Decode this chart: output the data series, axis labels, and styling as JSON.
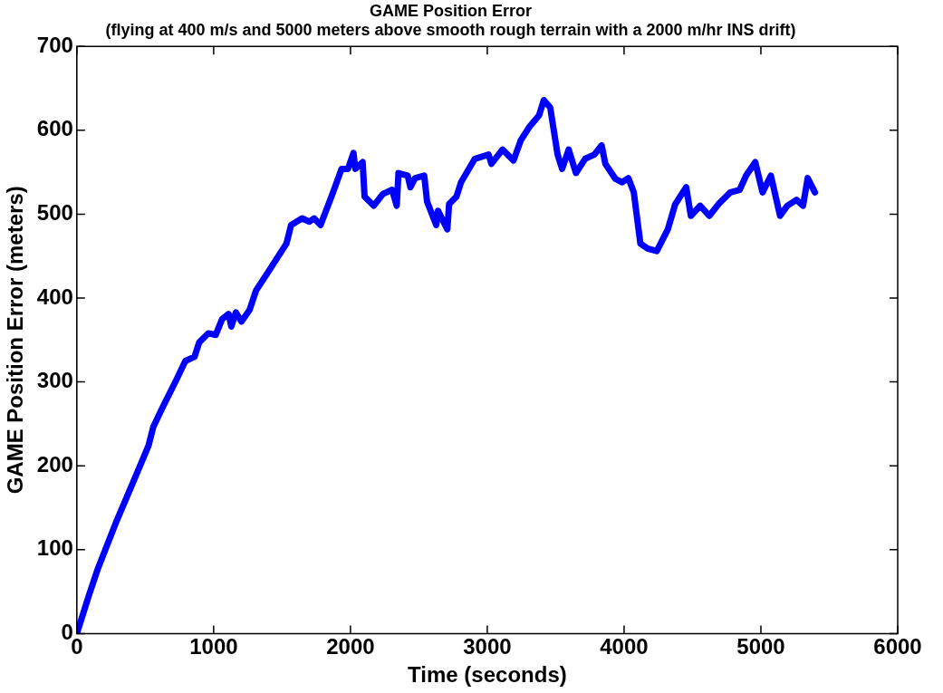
{
  "chart_data": {
    "type": "line",
    "title": "GAME Position Error",
    "subtitle": "(flying at 400 m/s and 5000 meters above smooth rough terrain with a 2000 m/hr INS drift)",
    "xlabel": "Time (seconds)",
    "ylabel": "GAME Position Error (meters)",
    "xlim": [
      0,
      6000
    ],
    "xticks": [
      0,
      1000,
      2000,
      3000,
      4000,
      5000,
      6000
    ],
    "ylim": [
      0,
      700
    ],
    "yticks": [
      0,
      100,
      200,
      300,
      400,
      500,
      600,
      700
    ],
    "grid": false,
    "legend": false,
    "marker": "none",
    "line_style": "solid",
    "series": [
      {
        "color": "#0000ff",
        "x": [
          0,
          87,
          155,
          290,
          423,
          524,
          558,
          625,
          726,
          793,
          860,
          894,
          961,
          1015,
          1062,
          1109,
          1129,
          1162,
          1203,
          1263,
          1310,
          1398,
          1465,
          1532,
          1566,
          1646,
          1700,
          1734,
          1781,
          1821,
          1868,
          1935,
          1982,
          2022,
          2036,
          2089,
          2103,
          2170,
          2237,
          2304,
          2338,
          2351,
          2418,
          2438,
          2472,
          2539,
          2560,
          2627,
          2640,
          2708,
          2721,
          2775,
          2808,
          2909,
          3010,
          3030,
          3111,
          3192,
          3245,
          3312,
          3379,
          3413,
          3460,
          3514,
          3547,
          3595,
          3648,
          3715,
          3783,
          3836,
          3863,
          3937,
          3984,
          4031,
          4071,
          4119,
          4172,
          4239,
          4320,
          4374,
          4454,
          4488,
          4556,
          4623,
          4690,
          4777,
          4845,
          4892,
          4959,
          5012,
          5073,
          5140,
          5193,
          5260,
          5308,
          5342,
          5395
        ],
        "values": [
          0,
          45,
          78,
          134,
          185,
          224,
          246,
          269,
          302,
          325,
          330,
          347,
          358,
          356,
          375,
          381,
          366,
          383,
          372,
          386,
          409,
          431,
          448,
          465,
          487,
          495,
          491,
          495,
          487,
          504,
          524,
          554,
          554,
          573,
          554,
          562,
          521,
          510,
          524,
          529,
          510,
          549,
          546,
          532,
          543,
          546,
          515,
          487,
          504,
          482,
          512,
          521,
          538,
          566,
          571,
          560,
          577,
          564,
          588,
          605,
          618,
          636,
          627,
          571,
          554,
          577,
          549,
          566,
          571,
          582,
          560,
          542,
          538,
          543,
          526,
          465,
          459,
          456,
          482,
          512,
          532,
          498,
          510,
          498,
          512,
          526,
          529,
          546,
          562,
          526,
          546,
          498,
          510,
          517,
          510,
          543,
          526
        ]
      }
    ]
  }
}
